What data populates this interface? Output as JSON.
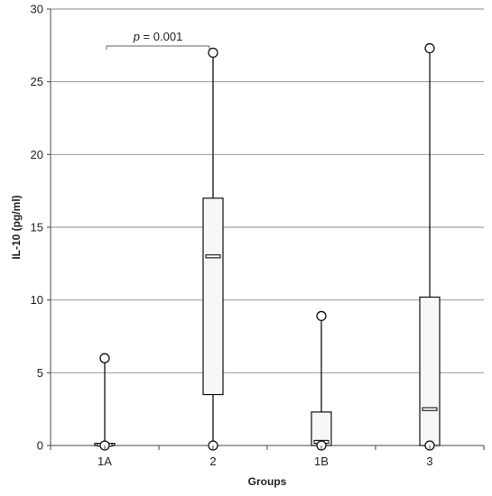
{
  "chart_data": {
    "type": "box",
    "xlabel": "Groups",
    "ylabel": "IL-10 (pg/ml)",
    "ylim": [
      0,
      30
    ],
    "yticks": [
      0,
      5,
      10,
      15,
      20,
      25,
      30
    ],
    "grid": true,
    "categories": [
      "1A",
      "2",
      "1B",
      "3"
    ],
    "boxes": [
      {
        "group": "1A",
        "min": 0,
        "q1": 0,
        "median": 0.05,
        "q3": 0.15,
        "max": 6.0,
        "outliers": [
          0,
          6.0
        ]
      },
      {
        "group": "2",
        "min": 0,
        "q1": 3.5,
        "median": 13.0,
        "q3": 17.0,
        "max": 27.0,
        "outliers": [
          0,
          27.0
        ]
      },
      {
        "group": "1B",
        "min": 0,
        "q1": 0,
        "median": 0.25,
        "q3": 2.3,
        "max": 8.9,
        "outliers": [
          0,
          8.9
        ]
      },
      {
        "group": "3",
        "min": 0,
        "q1": 0,
        "median": 2.5,
        "q3": 10.2,
        "max": 27.3,
        "outliers": [
          0,
          27.3
        ]
      }
    ],
    "annotation": {
      "p_symbol": "p",
      "p_rest": " = 0.001",
      "between": [
        "1A",
        "2"
      ],
      "y": 28.2
    }
  }
}
